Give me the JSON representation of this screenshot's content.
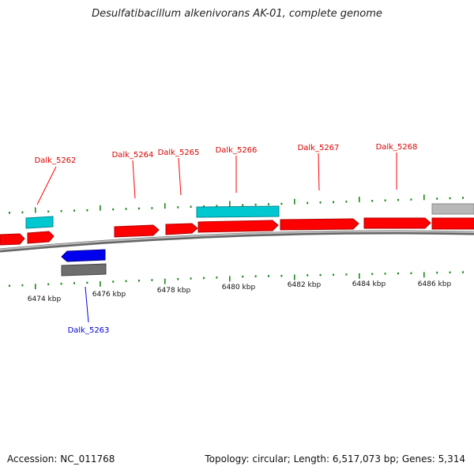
{
  "title": "Desulfatibacillum alkenivorans AK-01, complete genome",
  "footer": {
    "accession": "Accession: NC_011768",
    "summary": "Topology: circular; Length: 6,517,073 bp; Genes: 5,314"
  },
  "colors": {
    "forward_cds": "#ff0000",
    "reverse_cds": "#0000ee",
    "forward_rna": "#00c8d0",
    "forward_gene": "#b8b8b8",
    "reverse_gene": "#6e6e6e",
    "tick": "#1a8a1a",
    "backbone": "#888888"
  },
  "ticks": {
    "labels": [
      "6474 kbp",
      "6476 kbp",
      "6478 kbp",
      "6480 kbp",
      "6482 kbp",
      "6484 kbp",
      "6486 kbp"
    ]
  },
  "features": [
    {
      "label": "Dalk_5262",
      "strand": "forward",
      "color_key": "forward_cds"
    },
    {
      "label": "Dalk_5263",
      "strand": "reverse",
      "color_key": "reverse_cds"
    },
    {
      "label": "Dalk_5264",
      "strand": "forward",
      "color_key": "forward_cds"
    },
    {
      "label": "Dalk_5265",
      "strand": "forward",
      "color_key": "forward_cds"
    },
    {
      "label": "Dalk_5266",
      "strand": "forward",
      "color_key": "forward_cds"
    },
    {
      "label": "Dalk_5267",
      "strand": "forward",
      "color_key": "forward_cds"
    },
    {
      "label": "Dalk_5268",
      "strand": "forward",
      "color_key": "forward_cds"
    }
  ]
}
